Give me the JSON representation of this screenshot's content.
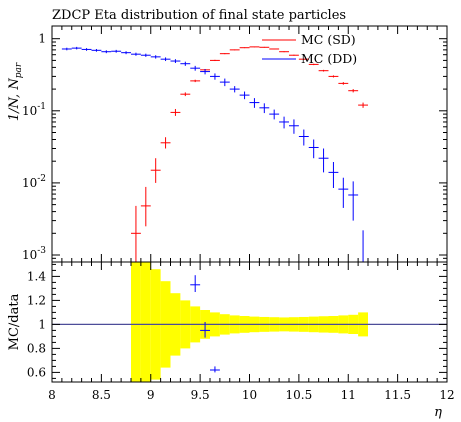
{
  "title": "ZDCP Eta distribution of final state particles",
  "colors": {
    "sd": "#ff0000",
    "dd": "#0000ff",
    "band": "#ffff00",
    "unity": "#4d4d99"
  },
  "chart_data": [
    {
      "type": "scatter",
      "panel": "main",
      "title": "ZDCP Eta distribution of final state particles",
      "ylabel": "1/N, N_par",
      "xlabel": "",
      "yscale": "log",
      "xlim": [
        8,
        12
      ],
      "ylim": [
        0.0008,
        1.5
      ],
      "ytick_labels": [
        "10^-3",
        "10^-2",
        "10^-1",
        "1"
      ],
      "legend_position": "top-right",
      "series": [
        {
          "name": "MC (SD)",
          "color": "#ff0000",
          "x": [
            8.85,
            8.95,
            9.05,
            9.15,
            9.25,
            9.35,
            9.45,
            9.55,
            9.65,
            9.75,
            9.85,
            9.95,
            10.05,
            10.15,
            10.25,
            10.35,
            10.45,
            10.55,
            10.65,
            10.75,
            10.85,
            10.95,
            11.05,
            11.15
          ],
          "y": [
            0.002,
            0.0048,
            0.015,
            0.036,
            0.095,
            0.17,
            0.26,
            0.37,
            0.5,
            0.62,
            0.7,
            0.75,
            0.77,
            0.76,
            0.72,
            0.66,
            0.59,
            0.52,
            0.44,
            0.36,
            0.3,
            0.24,
            0.19,
            0.12
          ],
          "y_lo": [
            0.0008,
            0.0025,
            0.01,
            0.03,
            0.085,
            0.16,
            0.25,
            0.36,
            0.49,
            0.61,
            0.69,
            0.74,
            0.76,
            0.75,
            0.71,
            0.65,
            0.58,
            0.51,
            0.43,
            0.35,
            0.29,
            0.23,
            0.18,
            0.11
          ],
          "y_hi": [
            0.0048,
            0.0088,
            0.022,
            0.043,
            0.106,
            0.18,
            0.27,
            0.38,
            0.51,
            0.63,
            0.71,
            0.76,
            0.78,
            0.77,
            0.73,
            0.67,
            0.6,
            0.53,
            0.45,
            0.37,
            0.31,
            0.25,
            0.2,
            0.13
          ]
        },
        {
          "name": "MC (DD)",
          "color": "#0000ff",
          "x": [
            8.15,
            8.25,
            8.35,
            8.45,
            8.55,
            8.65,
            8.75,
            8.85,
            8.95,
            9.05,
            9.15,
            9.25,
            9.35,
            9.45,
            9.55,
            9.65,
            9.75,
            9.85,
            9.95,
            10.05,
            10.15,
            10.25,
            10.35,
            10.45,
            10.55,
            10.65,
            10.75,
            10.85,
            10.95,
            11.05,
            11.15
          ],
          "y": [
            0.72,
            0.74,
            0.71,
            0.69,
            0.66,
            0.67,
            0.64,
            0.61,
            0.59,
            0.56,
            0.52,
            0.49,
            0.45,
            0.39,
            0.35,
            0.3,
            0.25,
            0.2,
            0.165,
            0.13,
            0.11,
            0.09,
            0.07,
            0.062,
            0.044,
            0.031,
            0.022,
            0.014,
            0.0082,
            0.0068,
            0.0008
          ],
          "y_lo": [
            0.69,
            0.71,
            0.68,
            0.66,
            0.63,
            0.64,
            0.61,
            0.58,
            0.56,
            0.53,
            0.49,
            0.46,
            0.42,
            0.36,
            0.32,
            0.27,
            0.22,
            0.18,
            0.145,
            0.11,
            0.093,
            0.076,
            0.057,
            0.048,
            0.033,
            0.022,
            0.014,
            0.0085,
            0.0045,
            0.003,
            0.0006
          ],
          "y_hi": [
            0.75,
            0.77,
            0.74,
            0.72,
            0.69,
            0.7,
            0.67,
            0.64,
            0.62,
            0.59,
            0.55,
            0.52,
            0.48,
            0.42,
            0.38,
            0.33,
            0.28,
            0.22,
            0.185,
            0.15,
            0.127,
            0.104,
            0.083,
            0.076,
            0.055,
            0.04,
            0.03,
            0.0195,
            0.0118,
            0.0105,
            0.0022
          ]
        }
      ]
    },
    {
      "type": "scatter",
      "panel": "ratio",
      "ylabel": "MC/data",
      "xlabel": "η",
      "xlim": [
        8,
        12
      ],
      "ylim": [
        0.52,
        1.52
      ],
      "xtick_labels": [
        "8",
        "8.5",
        "9",
        "9.5",
        "10",
        "10.5",
        "11",
        "11.5",
        "12"
      ],
      "ytick_labels": [
        "0.6",
        "0.8",
        "1",
        "1.2",
        "1.4"
      ],
      "unity": 1.0,
      "band": {
        "x_edges": [
          8.8,
          8.9,
          9.0,
          9.1,
          9.2,
          9.3,
          9.4,
          9.5,
          9.6,
          9.7,
          9.8,
          9.9,
          10.0,
          10.1,
          10.2,
          10.3,
          10.4,
          10.5,
          10.6,
          10.7,
          10.8,
          10.9,
          11.0,
          11.1,
          11.2
        ],
        "half_width": [
          0.9,
          0.55,
          0.46,
          0.36,
          0.26,
          0.2,
          0.15,
          0.12,
          0.1,
          0.085,
          0.075,
          0.07,
          0.065,
          0.062,
          0.06,
          0.058,
          0.06,
          0.062,
          0.065,
          0.068,
          0.07,
          0.075,
          0.08,
          0.1
        ]
      },
      "series": [
        {
          "name": "MC (DD)",
          "color": "#0000ff",
          "x": [
            9.45,
            9.55,
            9.65
          ],
          "y": [
            1.33,
            0.95,
            0.62
          ],
          "y_lo": [
            1.27,
            0.89,
            0.6
          ],
          "y_hi": [
            1.41,
            1.02,
            0.65
          ]
        }
      ]
    }
  ]
}
